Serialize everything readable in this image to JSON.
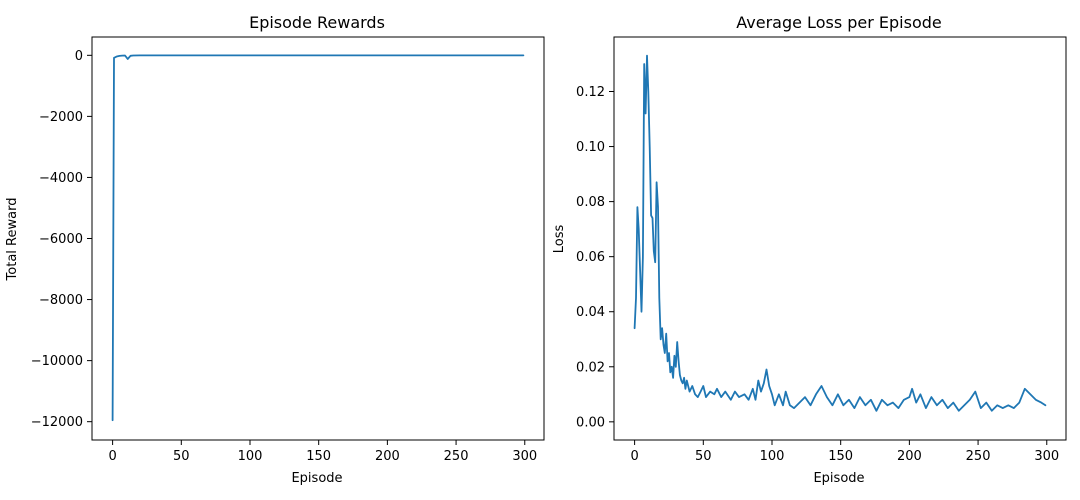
{
  "chart_data": [
    {
      "type": "line",
      "title": "Episode Rewards",
      "xlabel": "Episode",
      "ylabel": "Total Reward",
      "xlim": [
        -15,
        314
      ],
      "ylim": [
        -12600,
        600
      ],
      "xticks": [
        0,
        50,
        100,
        150,
        200,
        250,
        300
      ],
      "yticks": [
        0,
        -2000,
        -4000,
        -6000,
        -8000,
        -10000,
        -12000
      ],
      "ytick_labels": [
        "0",
        "−2000",
        "−4000",
        "−6000",
        "−8000",
        "−10000",
        "−12000"
      ],
      "grid": false,
      "color": "#1f77b4",
      "points": [
        [
          0,
          -11950
        ],
        [
          1,
          -80
        ],
        [
          2,
          -60
        ],
        [
          3,
          -40
        ],
        [
          5,
          -20
        ],
        [
          7,
          -10
        ],
        [
          9,
          -5
        ],
        [
          11,
          -120
        ],
        [
          13,
          -15
        ],
        [
          15,
          -5
        ],
        [
          20,
          -3
        ],
        [
          30,
          -2
        ],
        [
          50,
          -2
        ],
        [
          100,
          -2
        ],
        [
          150,
          -2
        ],
        [
          200,
          -2
        ],
        [
          250,
          -2
        ],
        [
          299,
          -2
        ]
      ]
    },
    {
      "type": "line",
      "title": "Average Loss per Episode",
      "xlabel": "Episode",
      "ylabel": "Loss",
      "xlim": [
        -15,
        314
      ],
      "ylim": [
        -0.0066,
        0.1398
      ],
      "xticks": [
        0,
        50,
        100,
        150,
        200,
        250,
        300
      ],
      "yticks": [
        0.0,
        0.02,
        0.04,
        0.06,
        0.08,
        0.1,
        0.12
      ],
      "ytick_labels": [
        "0.00",
        "0.02",
        "0.04",
        "0.06",
        "0.08",
        "0.10",
        "0.12"
      ],
      "grid": false,
      "color": "#1f77b4",
      "points": [
        [
          0,
          0.034
        ],
        [
          1,
          0.045
        ],
        [
          2,
          0.078
        ],
        [
          3,
          0.07
        ],
        [
          4,
          0.055
        ],
        [
          5,
          0.04
        ],
        [
          6,
          0.06
        ],
        [
          7,
          0.13
        ],
        [
          8,
          0.112
        ],
        [
          9,
          0.133
        ],
        [
          10,
          0.12
        ],
        [
          11,
          0.1
        ],
        [
          12,
          0.075
        ],
        [
          13,
          0.074
        ],
        [
          14,
          0.062
        ],
        [
          15,
          0.058
        ],
        [
          16,
          0.087
        ],
        [
          17,
          0.078
        ],
        [
          18,
          0.045
        ],
        [
          19,
          0.03
        ],
        [
          20,
          0.034
        ],
        [
          21,
          0.028
        ],
        [
          22,
          0.025
        ],
        [
          23,
          0.032
        ],
        [
          24,
          0.022
        ],
        [
          25,
          0.025
        ],
        [
          26,
          0.018
        ],
        [
          27,
          0.02
        ],
        [
          28,
          0.016
        ],
        [
          29,
          0.024
        ],
        [
          30,
          0.02
        ],
        [
          31,
          0.029
        ],
        [
          32,
          0.022
        ],
        [
          33,
          0.017
        ],
        [
          34,
          0.015
        ],
        [
          35,
          0.014
        ],
        [
          36,
          0.016
        ],
        [
          37,
          0.012
        ],
        [
          38,
          0.015
        ],
        [
          40,
          0.011
        ],
        [
          42,
          0.013
        ],
        [
          44,
          0.01
        ],
        [
          46,
          0.009
        ],
        [
          48,
          0.011
        ],
        [
          50,
          0.013
        ],
        [
          52,
          0.009
        ],
        [
          55,
          0.011
        ],
        [
          58,
          0.01
        ],
        [
          60,
          0.012
        ],
        [
          63,
          0.009
        ],
        [
          66,
          0.011
        ],
        [
          70,
          0.008
        ],
        [
          73,
          0.011
        ],
        [
          76,
          0.009
        ],
        [
          80,
          0.01
        ],
        [
          83,
          0.008
        ],
        [
          86,
          0.012
        ],
        [
          88,
          0.008
        ],
        [
          90,
          0.015
        ],
        [
          92,
          0.011
        ],
        [
          94,
          0.014
        ],
        [
          96,
          0.019
        ],
        [
          98,
          0.013
        ],
        [
          100,
          0.01
        ],
        [
          102,
          0.006
        ],
        [
          105,
          0.01
        ],
        [
          108,
          0.006
        ],
        [
          110,
          0.011
        ],
        [
          113,
          0.006
        ],
        [
          116,
          0.005
        ],
        [
          120,
          0.007
        ],
        [
          124,
          0.009
        ],
        [
          128,
          0.006
        ],
        [
          132,
          0.01
        ],
        [
          136,
          0.013
        ],
        [
          140,
          0.009
        ],
        [
          144,
          0.006
        ],
        [
          148,
          0.01
        ],
        [
          152,
          0.006
        ],
        [
          156,
          0.008
        ],
        [
          160,
          0.005
        ],
        [
          164,
          0.009
        ],
        [
          168,
          0.006
        ],
        [
          172,
          0.008
        ],
        [
          176,
          0.004
        ],
        [
          180,
          0.008
        ],
        [
          184,
          0.006
        ],
        [
          188,
          0.007
        ],
        [
          192,
          0.005
        ],
        [
          196,
          0.008
        ],
        [
          200,
          0.009
        ],
        [
          202,
          0.012
        ],
        [
          205,
          0.007
        ],
        [
          208,
          0.01
        ],
        [
          212,
          0.005
        ],
        [
          216,
          0.009
        ],
        [
          220,
          0.006
        ],
        [
          224,
          0.008
        ],
        [
          228,
          0.005
        ],
        [
          232,
          0.007
        ],
        [
          236,
          0.004
        ],
        [
          240,
          0.006
        ],
        [
          244,
          0.008
        ],
        [
          248,
          0.011
        ],
        [
          252,
          0.005
        ],
        [
          256,
          0.007
        ],
        [
          260,
          0.004
        ],
        [
          264,
          0.006
        ],
        [
          268,
          0.005
        ],
        [
          272,
          0.006
        ],
        [
          276,
          0.005
        ],
        [
          280,
          0.007
        ],
        [
          284,
          0.012
        ],
        [
          288,
          0.01
        ],
        [
          292,
          0.008
        ],
        [
          296,
          0.007
        ],
        [
          299,
          0.006
        ]
      ]
    }
  ]
}
